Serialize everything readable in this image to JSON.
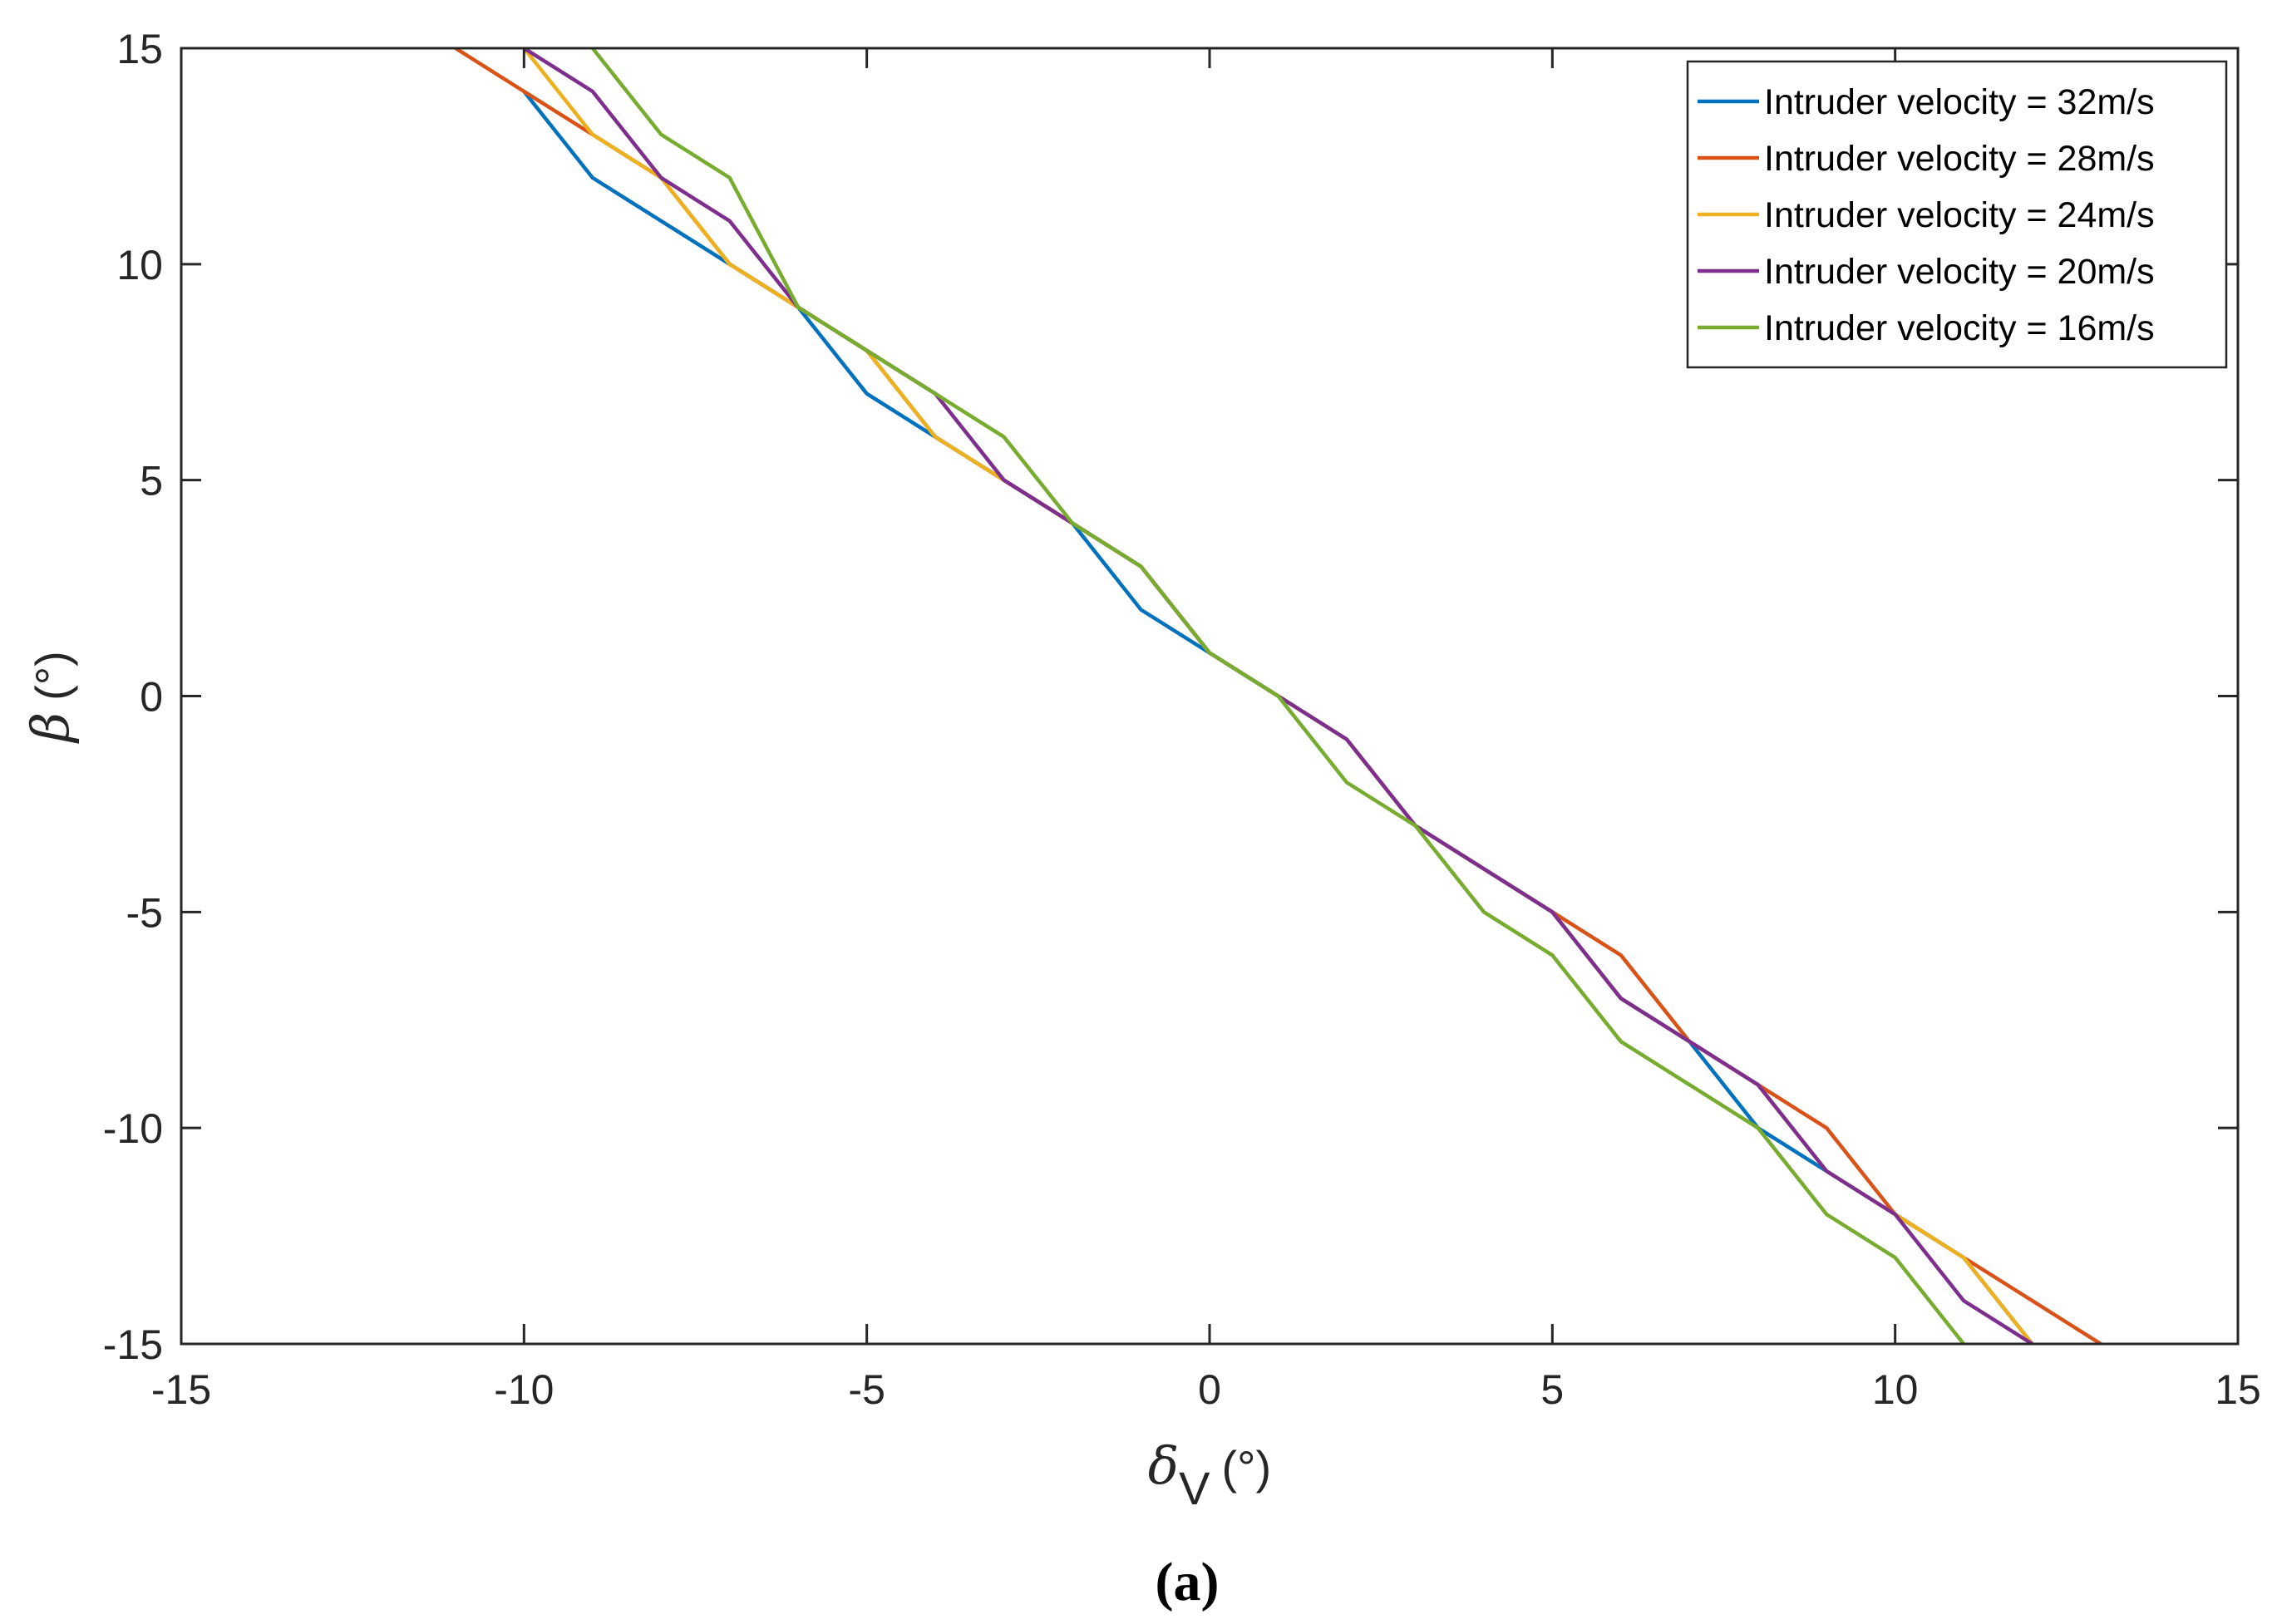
{
  "chart_data": {
    "type": "line",
    "title": "",
    "xlabel": {
      "symbol": "δ",
      "subscript": "V",
      "unit": "(°)"
    },
    "ylabel": {
      "symbol": "β",
      "unit": "(°)"
    },
    "xlim": [
      -15,
      15
    ],
    "ylim": [
      -15,
      15
    ],
    "x_ticks": [
      "-15",
      "-10",
      "-5",
      "0",
      "5",
      "10",
      "15"
    ],
    "y_ticks": [
      "15",
      "10",
      "5",
      "0",
      "-5",
      "-10",
      "-15"
    ],
    "x_tick_values": [
      -15,
      -10,
      -5,
      0,
      5,
      10,
      15
    ],
    "y_tick_values": [
      15,
      10,
      5,
      0,
      -5,
      -10,
      -15
    ],
    "grid": false,
    "legend_position": "top-right",
    "caption": "(a)",
    "series": [
      {
        "name": "Intruder velocity = 32m/s",
        "color": "#0072BD",
        "x": [
          -10,
          -9,
          -7,
          -6,
          -5,
          -4,
          -3,
          -2,
          -1,
          0,
          1,
          2,
          3,
          5,
          6,
          7,
          8,
          9,
          10,
          11,
          12
        ],
        "y": [
          14,
          12,
          10,
          9,
          7,
          6,
          5,
          4,
          2,
          1,
          0,
          -1,
          -3,
          -5,
          -7,
          -8,
          -10,
          -11,
          -12,
          -13,
          -15
        ]
      },
      {
        "name": "Intruder velocity = 28m/s",
        "color": "#D95319",
        "x": [
          -11,
          -10,
          -9,
          -8,
          -7,
          -6,
          -5,
          -4,
          -3,
          -2,
          -1,
          0,
          1,
          2,
          3,
          5,
          6,
          7,
          8,
          9,
          10,
          11,
          12,
          13
        ],
        "y": [
          15,
          14,
          13,
          12,
          10,
          9,
          8,
          6,
          5,
          4,
          3,
          1,
          0,
          -1,
          -3,
          -5,
          -6,
          -8,
          -9,
          -10,
          -12,
          -13,
          -14,
          -15
        ]
      },
      {
        "name": "Intruder velocity = 24m/s",
        "color": "#EDB120",
        "x": [
          -10,
          -9,
          -8,
          -7,
          -6,
          -5,
          -4,
          -3,
          -2,
          -1,
          0,
          1,
          2,
          3,
          5,
          6,
          7,
          8,
          9,
          10,
          11,
          12
        ],
        "y": [
          15,
          13,
          12,
          10,
          9,
          8,
          6,
          5,
          4,
          3,
          1,
          0,
          -1,
          -3,
          -5,
          -7,
          -8,
          -9,
          -11,
          -12,
          -13,
          -15
        ]
      },
      {
        "name": "Intruder velocity = 20m/s",
        "color": "#7E2F8E",
        "x": [
          -10,
          -9,
          -8,
          -7,
          -6,
          -5,
          -4,
          -3,
          -2,
          -1,
          0,
          1,
          2,
          3,
          5,
          6,
          7,
          8,
          9,
          10,
          11,
          12
        ],
        "y": [
          15,
          14,
          12,
          11,
          9,
          8,
          7,
          5,
          4,
          3,
          1,
          0,
          -1,
          -3,
          -5,
          -7,
          -8,
          -9,
          -11,
          -12,
          -14,
          -15
        ]
      },
      {
        "name": "Intruder velocity = 16m/s",
        "color": "#77AC30",
        "x": [
          -9,
          -8,
          -7,
          -6,
          -5,
          -4,
          -3,
          -2,
          -1,
          0,
          1,
          2,
          3,
          4,
          5,
          6,
          7,
          8,
          9,
          10,
          11
        ],
        "y": [
          15,
          13,
          12,
          9,
          8,
          7,
          6,
          4,
          3,
          1,
          0,
          -2,
          -3,
          -5,
          -6,
          -8,
          -9,
          -10,
          -12,
          -13,
          -15
        ]
      }
    ]
  }
}
